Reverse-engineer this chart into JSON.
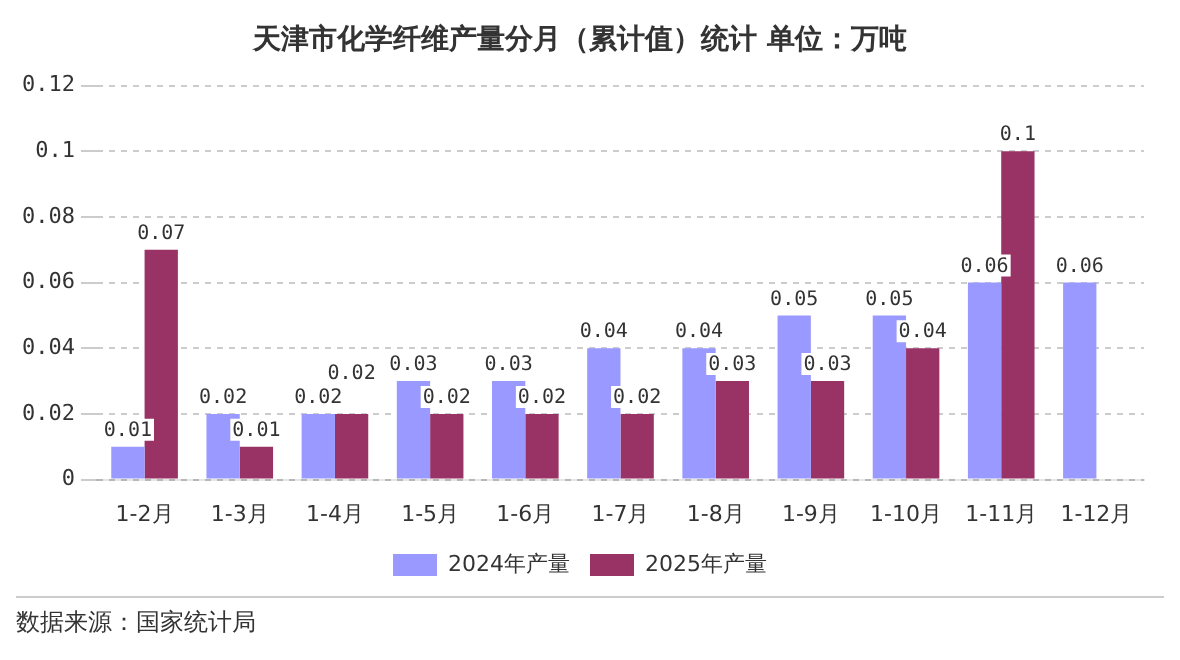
{
  "chart_data": {
    "type": "bar",
    "title": "天津市化学纤维产量分月（累计值）统计 单位：万吨",
    "categories": [
      "1-2月",
      "1-3月",
      "1-4月",
      "1-5月",
      "1-6月",
      "1-7月",
      "1-8月",
      "1-9月",
      "1-10月",
      "1-11月",
      "1-12月"
    ],
    "series": [
      {
        "name": "2024年产量",
        "color": "#9999ff",
        "values": [
          0.01,
          0.02,
          0.02,
          0.03,
          0.03,
          0.04,
          0.04,
          0.05,
          0.05,
          0.06,
          0.06
        ]
      },
      {
        "name": "2025年产量",
        "color": "#993366",
        "values": [
          0.07,
          0.01,
          0.02,
          0.02,
          0.02,
          0.02,
          0.03,
          0.03,
          0.04,
          0.1,
          null
        ]
      }
    ],
    "ylim": [
      0,
      0.12
    ],
    "yticks": [
      0,
      0.02,
      0.04,
      0.06,
      0.08,
      0.1,
      0.12
    ],
    "grid": "y",
    "legend": "bottom",
    "data_labels": true,
    "annotations": [
      "数据来源：国家统计局"
    ]
  }
}
